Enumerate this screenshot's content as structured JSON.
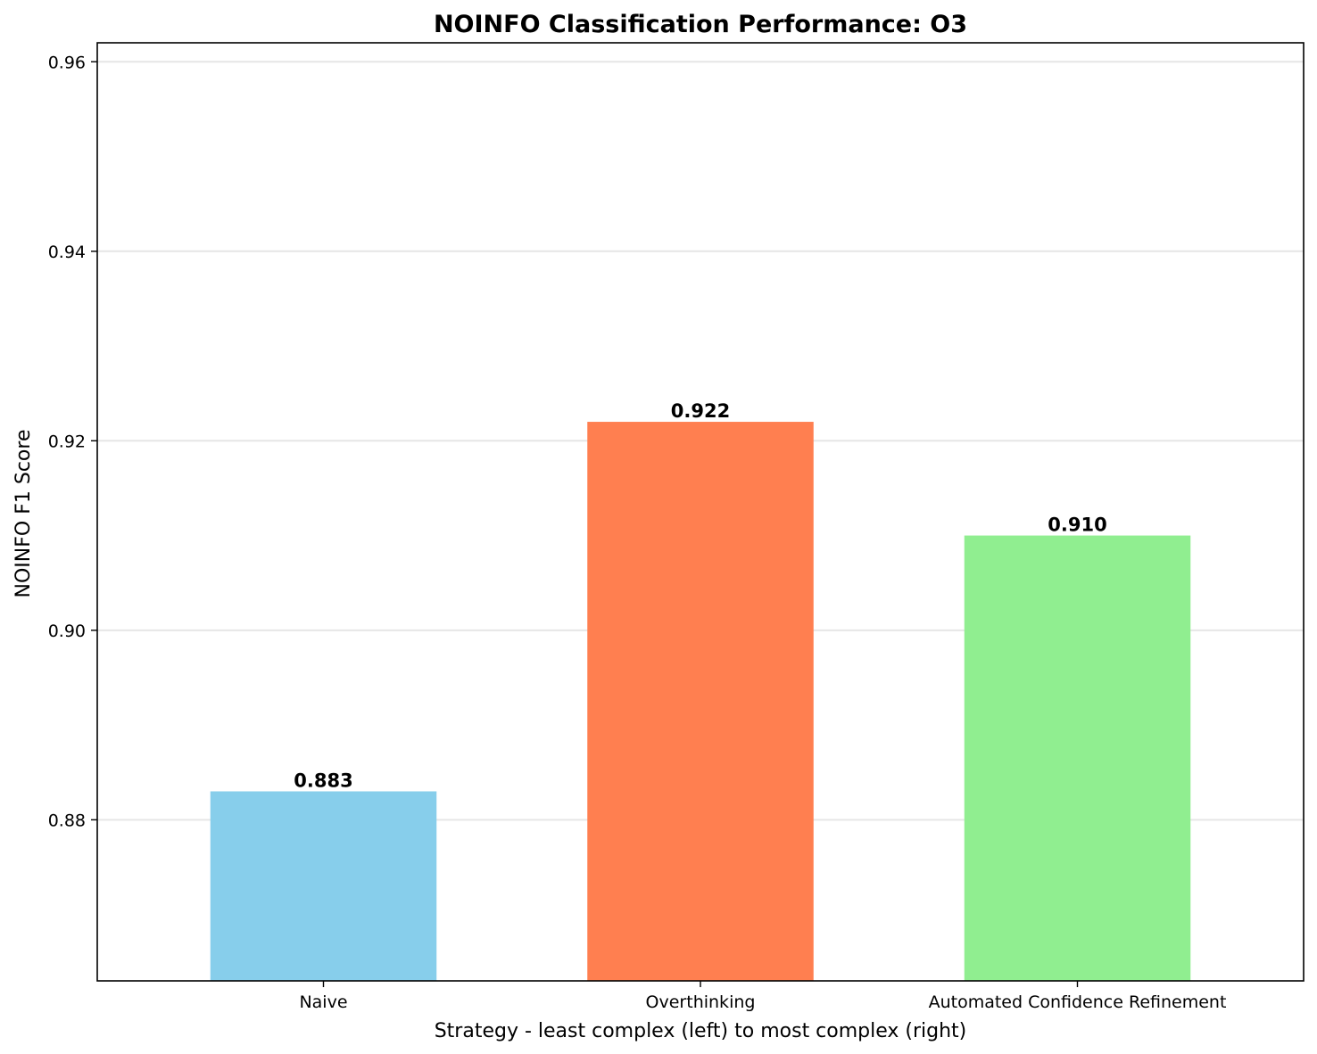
{
  "chart_data": {
    "type": "bar",
    "title": "NOINFO Classification Performance: O3",
    "xlabel": "Strategy - least complex (left) to most complex (right)",
    "ylabel": "NOINFO F1 Score",
    "categories": [
      "Naive",
      "Overthinking",
      "Automated Confidence Refinement"
    ],
    "values": [
      0.883,
      0.922,
      0.91
    ],
    "value_labels": [
      "0.883",
      "0.922",
      "0.910"
    ],
    "colors": [
      "#87CEEB",
      "#FF7F50",
      "#90EE90"
    ],
    "ylim": [
      0.863,
      0.962
    ],
    "yticks": [
      0.88,
      0.9,
      0.92,
      0.94,
      0.96
    ],
    "ytick_labels": [
      "0.88",
      "0.90",
      "0.92",
      "0.94",
      "0.96"
    ],
    "grid": "horizontal",
    "legend": "none"
  }
}
